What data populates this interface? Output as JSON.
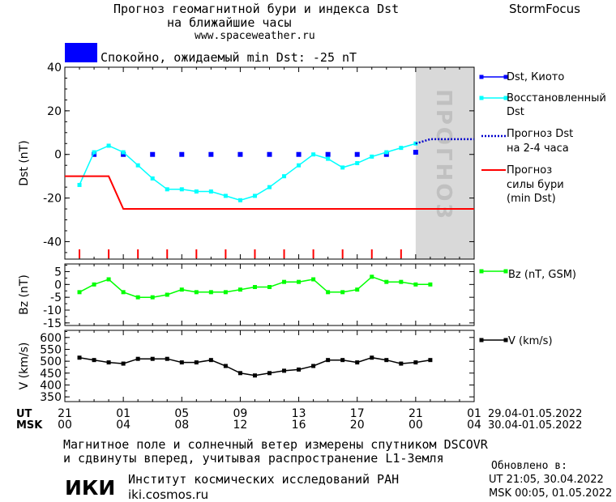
{
  "header": {
    "title_line1": "Прогноз геомагнитной бури и индекса Dst",
    "title_line2": "на ближайшие часы",
    "url": "www.spaceweather.ru",
    "brand": "StormFocus"
  },
  "status": {
    "text": "Спокойно, ожидаемый min Dst: -25 nT",
    "color": "#0000ff"
  },
  "colors": {
    "dst_kyoto": "#0000ff",
    "dst_restored": "#00ffff",
    "forecast_dst": "#0000cc",
    "storm_forecast": "#ff0000",
    "bz": "#00ff00",
    "v": "#000000",
    "forecast_shade": "#d9d9d9",
    "forecast_word": "#c0c0c0"
  },
  "forecast_label": "ПРОГНОЗ",
  "time_axis": {
    "ut_label": "UT",
    "msk_label": "MSK",
    "ut_ticks": [
      "21",
      "01",
      "05",
      "09",
      "13",
      "17",
      "21",
      "01"
    ],
    "msk_ticks": [
      "00",
      "04",
      "08",
      "12",
      "16",
      "20",
      "00",
      "04"
    ],
    "ut_range": "29.04-01.05.2022",
    "msk_range": "30.04-01.05.2022"
  },
  "chart_data": [
    {
      "type": "line",
      "ylabel": "Dst (nT)",
      "ylim": [
        -48,
        40
      ],
      "yticks": [
        "40",
        "20",
        "0",
        "-20",
        "-40"
      ],
      "xlim": [
        0,
        28
      ],
      "forecast_region": [
        24,
        28
      ],
      "storm_hour_marks": [
        1,
        3,
        5,
        7,
        9,
        11,
        13,
        15,
        17,
        19,
        21,
        23
      ],
      "series": [
        {
          "name": "Dst, Киото",
          "style": "squares",
          "x": [
            2,
            4,
            6,
            8,
            10,
            12,
            14,
            16,
            18,
            20,
            22,
            24
          ],
          "y": [
            0,
            0,
            0,
            0,
            0,
            0,
            0,
            0,
            0,
            0,
            0,
            1
          ]
        },
        {
          "name": "Восстановленный Dst",
          "style": "line-markers",
          "x": [
            1,
            2,
            3,
            4,
            5,
            6,
            7,
            8,
            9,
            10,
            11,
            12,
            13,
            14,
            15,
            16,
            17,
            18,
            19,
            20,
            21,
            22,
            23,
            24
          ],
          "y": [
            -14,
            1,
            4,
            1,
            -5,
            -11,
            -16,
            -16,
            -17,
            -17,
            -19,
            -21,
            -19,
            -15,
            -10,
            -5,
            0,
            -2,
            -6,
            -4,
            -1,
            1,
            3,
            5
          ]
        },
        {
          "name": "Прогноз Dst на 2-4 часа",
          "style": "dotted",
          "x": [
            24,
            25,
            26,
            27,
            28
          ],
          "y": [
            5,
            7,
            7,
            7,
            7
          ]
        },
        {
          "name": "Прогноз силы бури (min Dst)",
          "style": "step",
          "x": [
            0,
            3,
            4,
            28
          ],
          "y": [
            -10,
            -10,
            -25,
            -25
          ]
        }
      ]
    },
    {
      "type": "line",
      "ylabel": "Bz (nT)",
      "ylim": [
        -16,
        8
      ],
      "yticks": [
        "5",
        "0",
        "-5",
        "-10",
        "-15"
      ],
      "xlim": [
        0,
        28
      ],
      "series": [
        {
          "name": "Bz (nT, GSM)",
          "x": [
            1,
            2,
            3,
            4,
            5,
            6,
            7,
            8,
            9,
            10,
            11,
            12,
            13,
            14,
            15,
            16,
            17,
            18,
            19,
            20,
            21,
            22,
            23,
            24,
            25
          ],
          "y": [
            -3,
            0,
            2,
            -3,
            -5,
            -5,
            -4,
            -2,
            -3,
            -3,
            -3,
            -2,
            -1,
            -1,
            1,
            1,
            2,
            -3,
            -3,
            -2,
            3,
            1,
            1,
            0,
            0
          ]
        }
      ]
    },
    {
      "type": "line",
      "ylabel": "V (km/s)",
      "ylim": [
        330,
        630
      ],
      "yticks": [
        "600",
        "550",
        "500",
        "450",
        "400",
        "350"
      ],
      "xlim": [
        0,
        28
      ],
      "series": [
        {
          "name": "V (km/s)",
          "x": [
            1,
            2,
            3,
            4,
            5,
            6,
            7,
            8,
            9,
            10,
            11,
            12,
            13,
            14,
            15,
            16,
            17,
            18,
            19,
            20,
            21,
            22,
            23,
            24,
            25
          ],
          "y": [
            515,
            505,
            495,
            490,
            510,
            510,
            510,
            495,
            495,
            505,
            480,
            450,
            440,
            450,
            460,
            465,
            480,
            505,
            505,
            495,
            515,
            505,
            490,
            495,
            505
          ]
        }
      ]
    }
  ],
  "footer": {
    "note_line1": "Магнитное поле и солнечный ветер измерены спутником DSCOVR",
    "note_line2": "и сдвинуты вперед, учитывая распространение L1-Земля",
    "institute": "Институт космических исследований РАН",
    "site": "iki.cosmos.ru",
    "logo_text": "ИКИ",
    "updated_label": "Обновлено в:",
    "updated_ut": "UT  21:05, 30.04.2022",
    "updated_msk": "MSK 00:05, 01.05.2022"
  }
}
